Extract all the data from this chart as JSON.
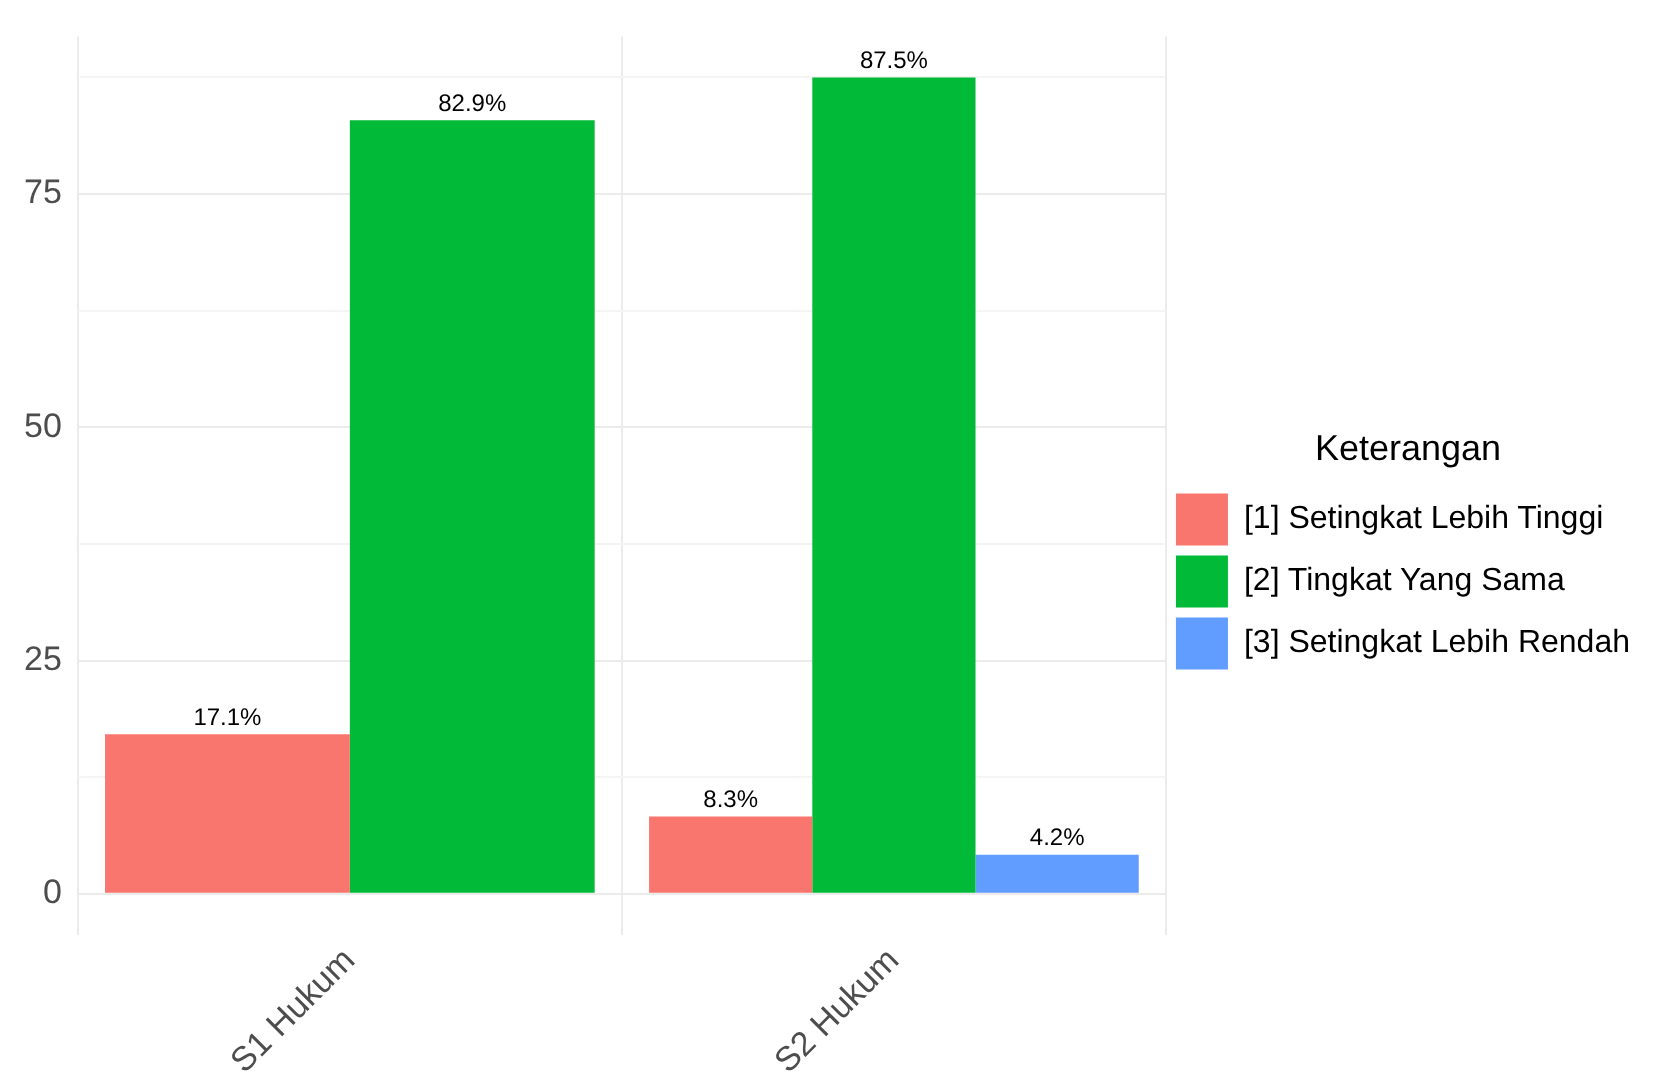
{
  "chart_data": {
    "type": "bar",
    "categories": [
      "S1 Hukum",
      "S2 Hukum"
    ],
    "series": [
      {
        "name": "[1] Setingkat Lebih Tinggi",
        "color": "#f8766d",
        "values": [
          17.1,
          8.3
        ],
        "value_labels": [
          "17.1%",
          "8.3%"
        ]
      },
      {
        "name": "[2] Tingkat Yang Sama",
        "color": "#00ba38",
        "values": [
          82.9,
          87.5
        ],
        "value_labels": [
          "82.9%",
          "87.5%"
        ]
      },
      {
        "name": "[3] Setingkat Lebih Rendah",
        "color": "#619cff",
        "values": [
          null,
          4.2
        ],
        "value_labels": [
          null,
          "4.2%"
        ]
      }
    ],
    "legend_title": "Keterangan",
    "legend": "right",
    "grid": true,
    "ylim": [
      -4.4,
      91.9
    ],
    "yticks": [
      0,
      {
        "value": 12.5,
        "label": null
      },
      25,
      {
        "value": 37.5,
        "label": null
      },
      50,
      {
        "value": 62.5,
        "label": null
      },
      75,
      {
        "value": 87.5,
        "label": null
      }
    ]
  }
}
